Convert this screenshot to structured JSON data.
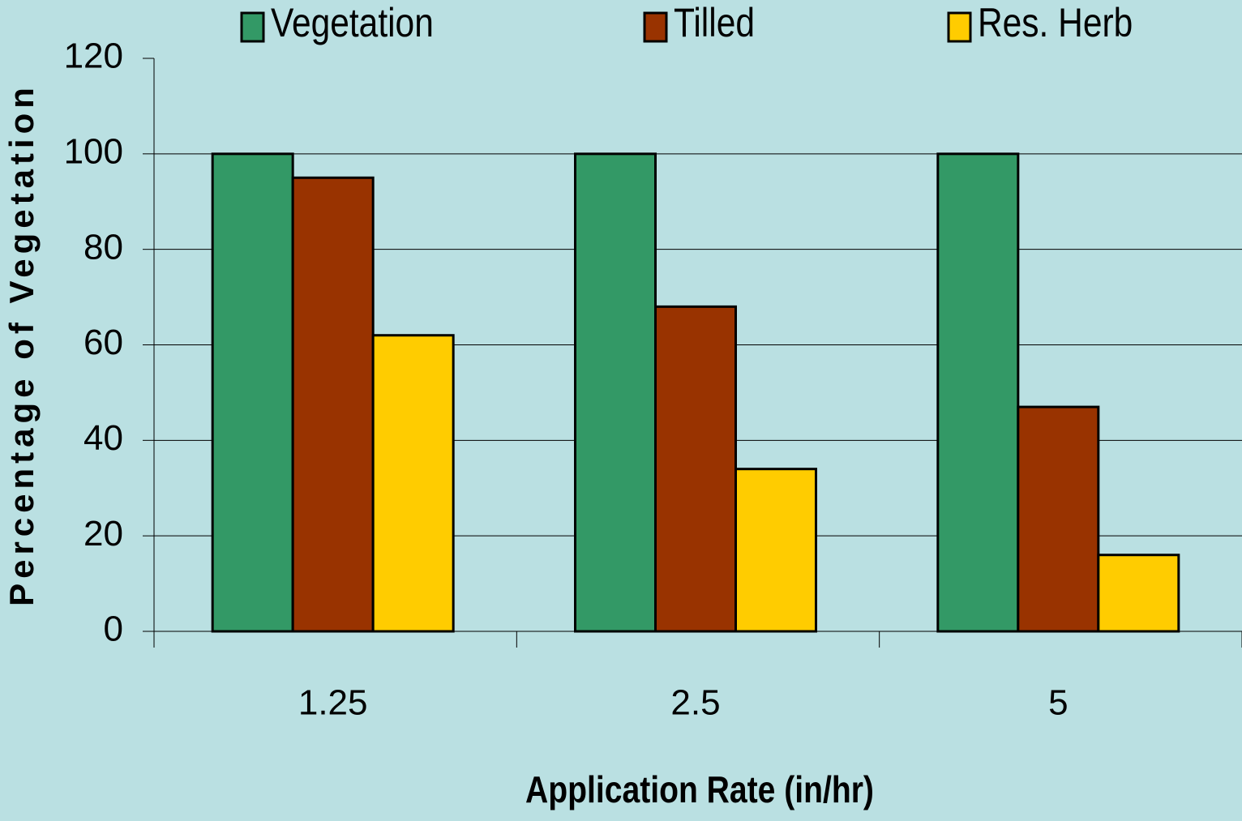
{
  "chart_data": {
    "type": "bar",
    "categories": [
      "1.25",
      "2.5",
      "5"
    ],
    "series": [
      {
        "name": "Vegetation",
        "color": "#339966",
        "values": [
          100,
          100,
          100
        ]
      },
      {
        "name": "Tilled",
        "color": "#993300",
        "values": [
          95,
          68,
          47
        ]
      },
      {
        "name": "Res. Herb",
        "color": "#ffcc00",
        "values": [
          62,
          34,
          16
        ]
      }
    ],
    "xlabel": "Application Rate (in/hr)",
    "ylabel": "Percentage of Vegetation",
    "ylim": [
      0,
      120
    ],
    "yticks": [
      0,
      20,
      40,
      60,
      80,
      100,
      120
    ],
    "grid": true,
    "legend": "top"
  }
}
